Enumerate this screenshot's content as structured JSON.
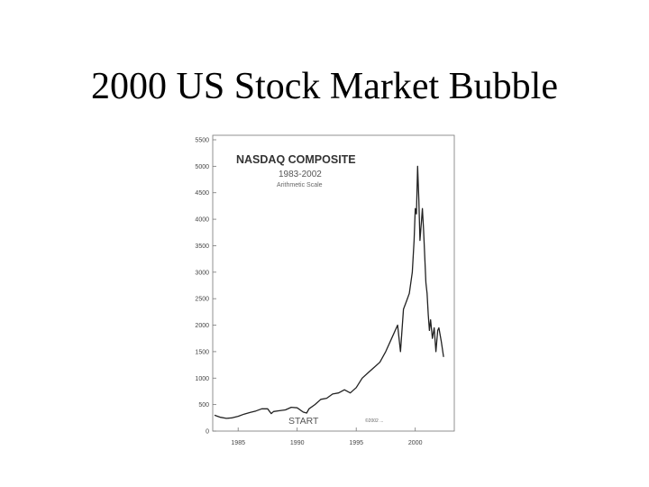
{
  "slide": {
    "title": "2000 US Stock Market Bubble"
  },
  "chart_data": {
    "type": "line",
    "title": "NASDAQ COMPOSITE",
    "subtitle": "1983-2002",
    "note": "Arithmetic Scale",
    "annotation_start": "START",
    "copyright": "©2002 ... ",
    "xlabel": "",
    "ylabel": "",
    "x_ticks": [
      1985,
      1990,
      1995,
      2000
    ],
    "x_tick_labels": [
      "1985",
      "1990",
      "1995",
      "2000"
    ],
    "y_ticks": [
      0,
      500,
      1000,
      1500,
      2000,
      2500,
      3000,
      3500,
      4000,
      4500,
      5000,
      5500
    ],
    "y_tick_labels": [
      "0",
      "500",
      "1000",
      "1500",
      "2000",
      "2500",
      "3000",
      "3500",
      "4000",
      "4500",
      "5000",
      "5500"
    ],
    "xlim": [
      1983,
      2003
    ],
    "ylim": [
      0,
      5500
    ],
    "grid": false,
    "series": [
      {
        "color": "#222222",
        "x": [
          1983.0,
          1983.5,
          1984.0,
          1984.5,
          1985.0,
          1985.5,
          1986.0,
          1986.5,
          1987.0,
          1987.5,
          1987.8,
          1988.0,
          1988.5,
          1989.0,
          1989.5,
          1990.0,
          1990.5,
          1990.8,
          1991.0,
          1991.5,
          1992.0,
          1992.5,
          1993.0,
          1993.5,
          1994.0,
          1994.5,
          1995.0,
          1995.5,
          1996.0,
          1996.5,
          1997.0,
          1997.5,
          1998.0,
          1998.5,
          1998.75,
          1999.0,
          1999.25,
          1999.5,
          1999.75,
          1999.9,
          2000.0,
          2000.1,
          2000.2,
          2000.3,
          2000.4,
          2000.5,
          2000.6,
          2000.7,
          2000.8,
          2000.9,
          2001.0,
          2001.1,
          2001.2,
          2001.3,
          2001.45,
          2001.6,
          2001.75,
          2001.9,
          2002.0,
          2002.2,
          2002.4
        ],
        "y": [
          300,
          260,
          240,
          250,
          280,
          320,
          350,
          380,
          420,
          420,
          330,
          370,
          385,
          400,
          450,
          440,
          360,
          340,
          420,
          500,
          600,
          620,
          700,
          720,
          780,
          720,
          820,
          1000,
          1100,
          1200,
          1300,
          1500,
          1750,
          2000,
          1500,
          2300,
          2450,
          2600,
          3000,
          3600,
          4200,
          4100,
          5000,
          4400,
          3600,
          3900,
          4200,
          3800,
          3300,
          2800,
          2600,
          2200,
          1900,
          2100,
          1750,
          1950,
          1500,
          1900,
          1950,
          1700,
          1400
        ]
      }
    ]
  }
}
